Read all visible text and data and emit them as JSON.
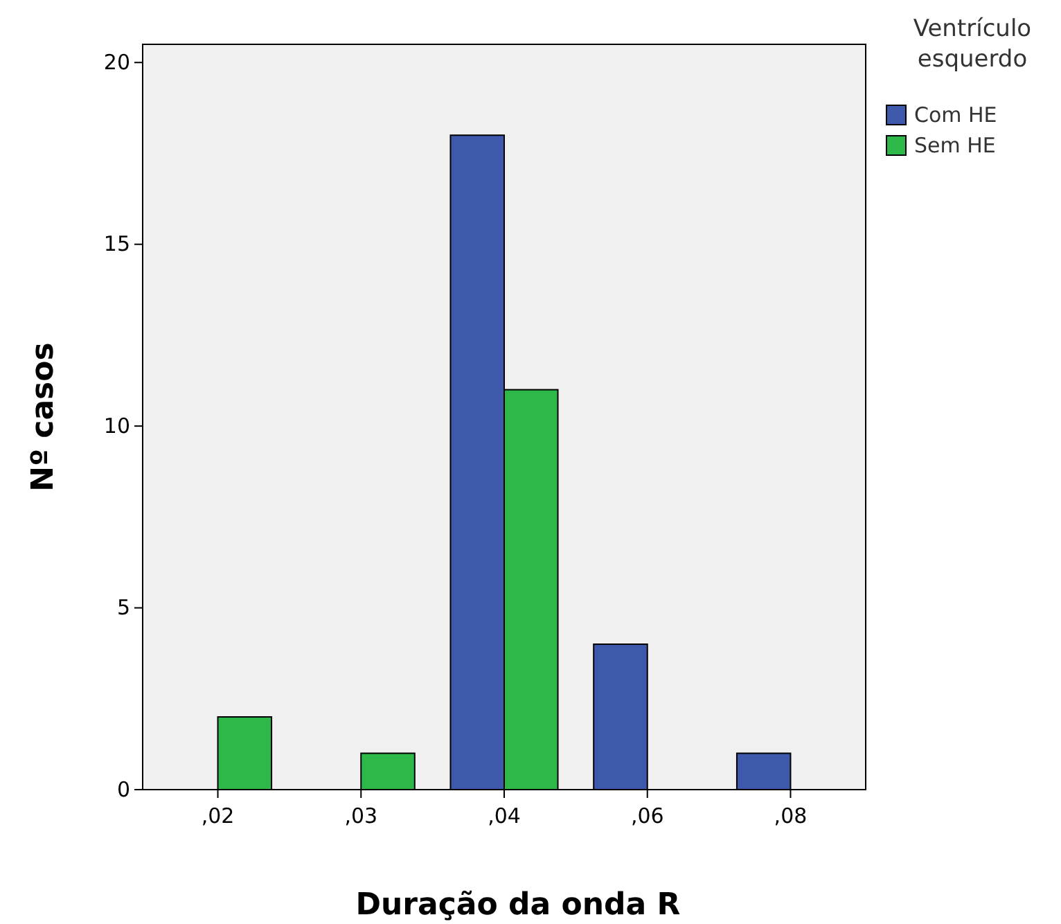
{
  "chart_data": {
    "type": "bar",
    "xlabel": "Duração da onda R",
    "ylabel": "Nº casos",
    "legend_title": "Ventrículo esquerdo",
    "categories": [
      ",02",
      ",03",
      ",04",
      ",06",
      ",08"
    ],
    "series": [
      {
        "name": "Com HE",
        "color": "#3e58ac",
        "values": [
          null,
          null,
          18,
          4,
          1
        ]
      },
      {
        "name": "Sem HE",
        "color": "#2eb84a",
        "values": [
          2,
          1,
          11,
          null,
          null
        ]
      }
    ],
    "ylim": [
      0,
      20.5
    ],
    "yticks": [
      0,
      5,
      10,
      15,
      20
    ],
    "grid": false,
    "legend": "top right"
  }
}
